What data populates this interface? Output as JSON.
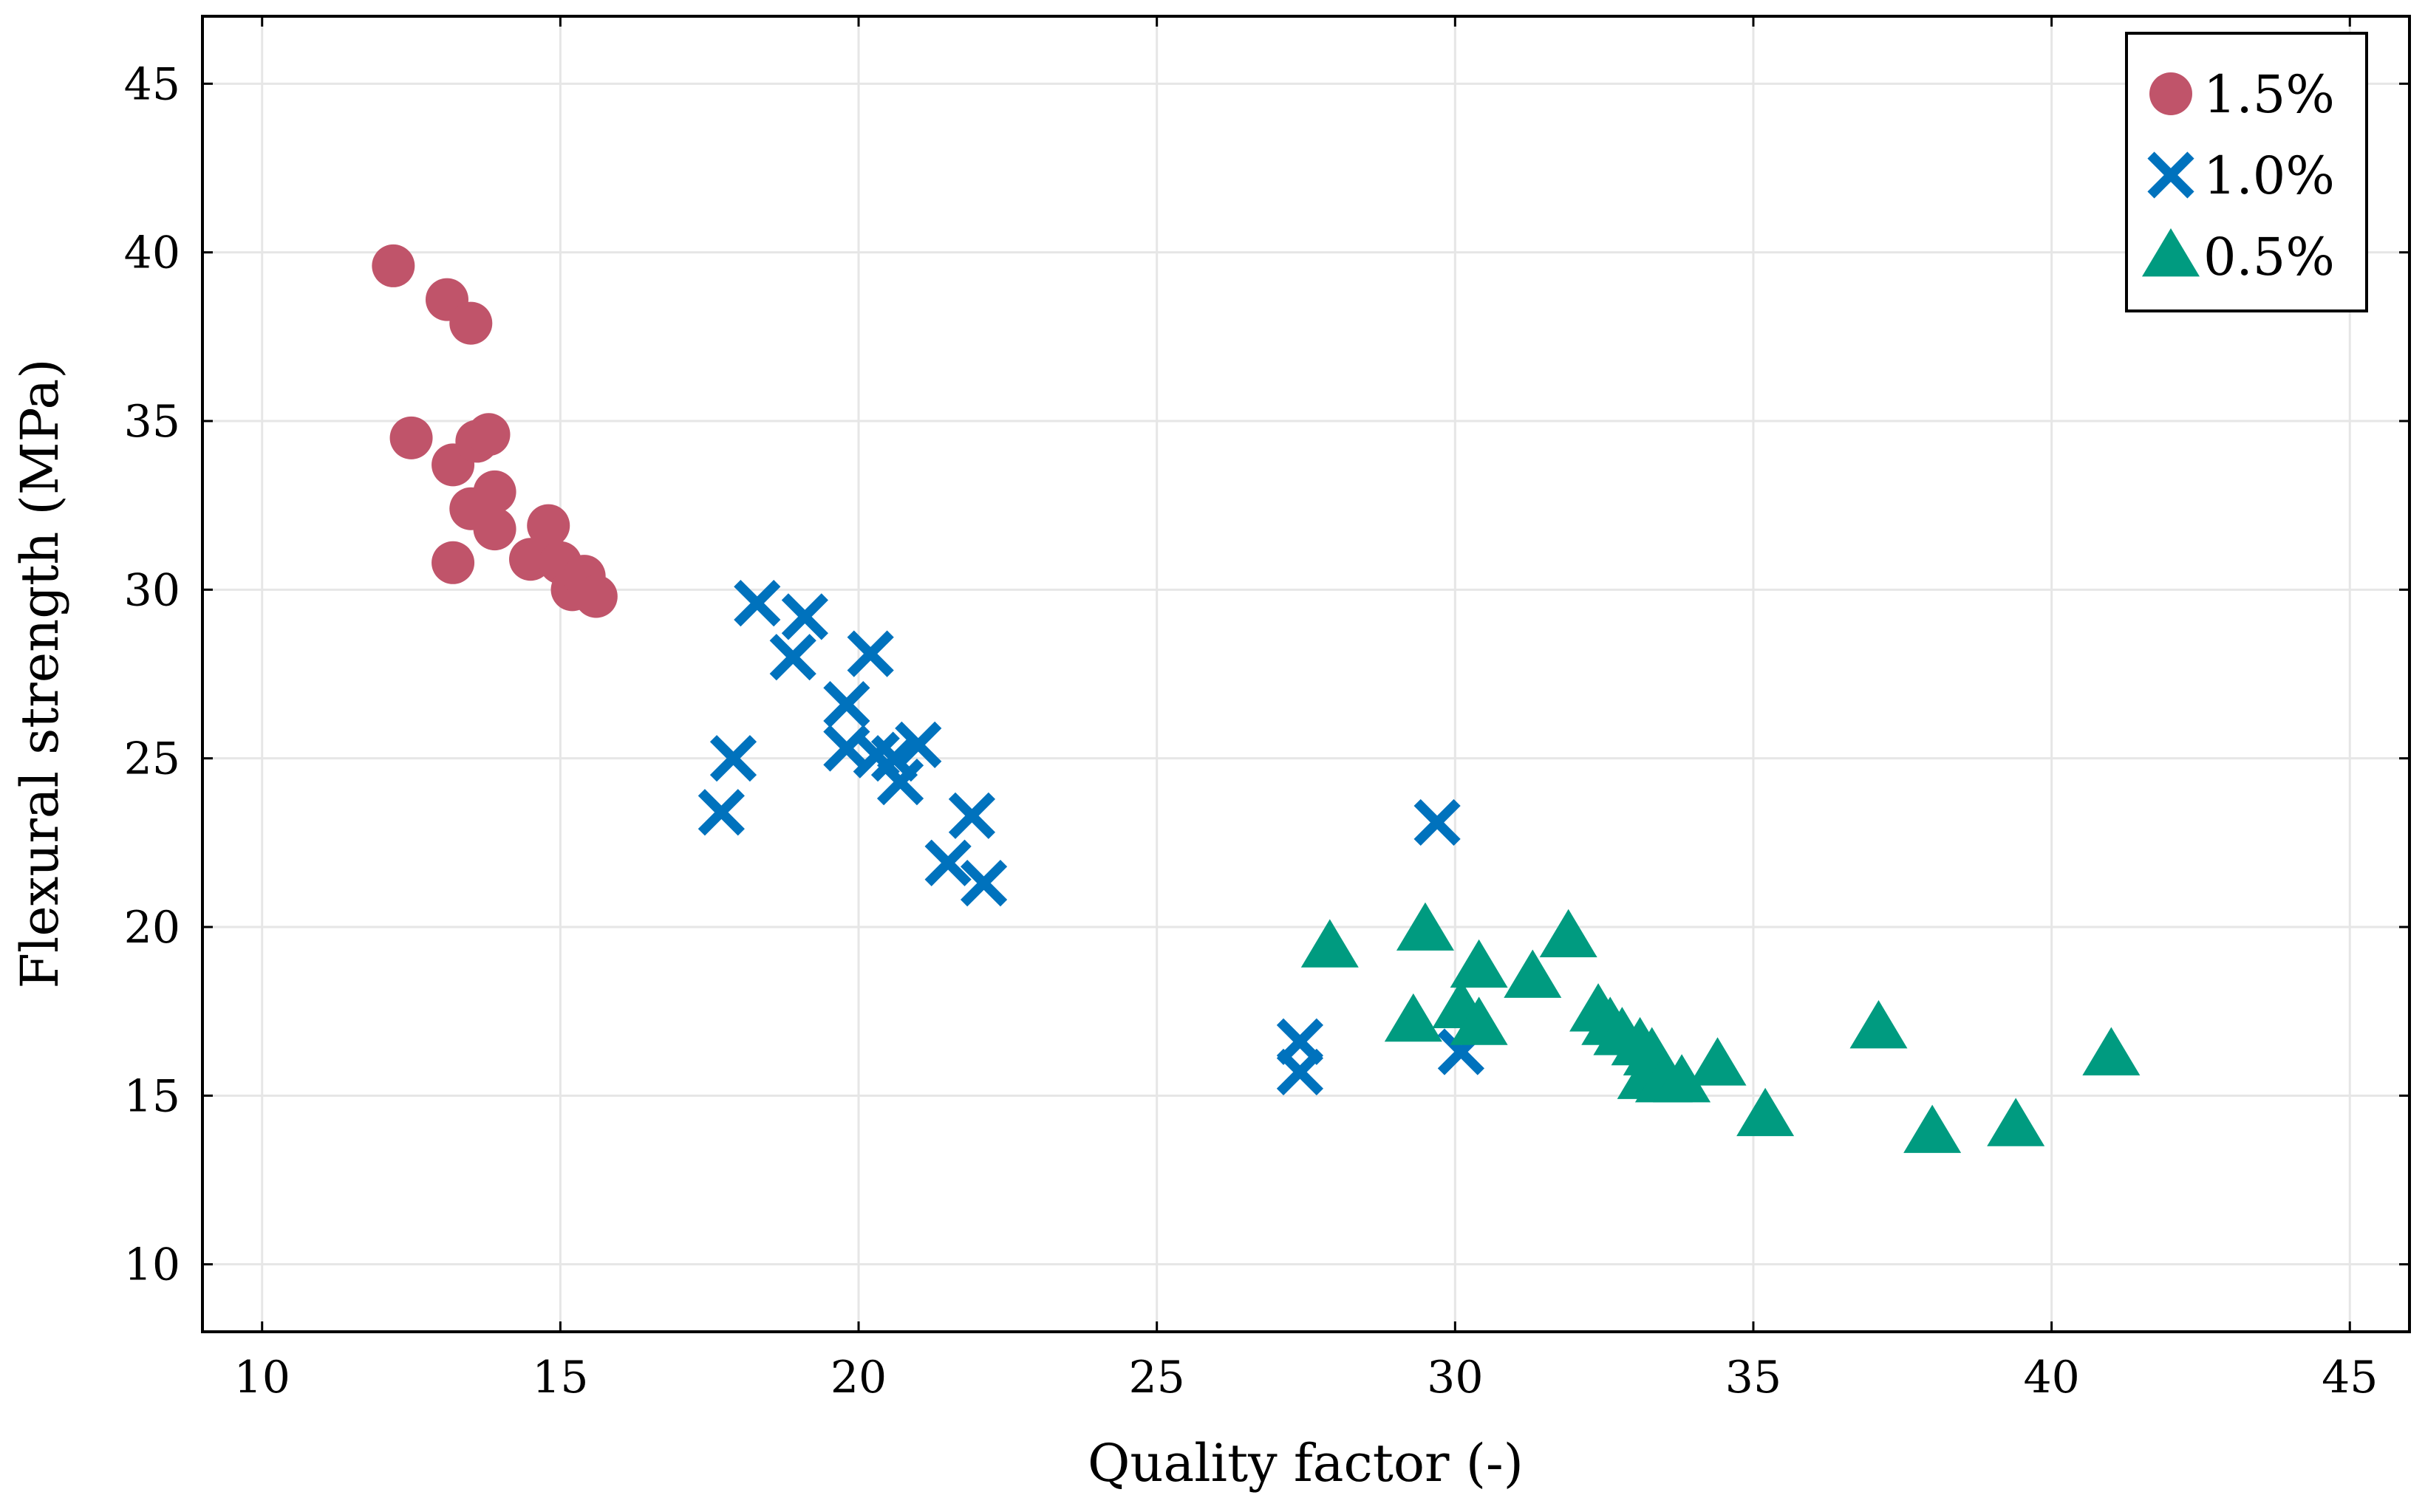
{
  "chart_data": {
    "type": "scatter",
    "title": "",
    "xlabel": "Quality factor (-)",
    "ylabel": "Flexural strength (MPa)",
    "xlim": [
      9,
      46
    ],
    "ylim": [
      8,
      47
    ],
    "xticks": [
      10,
      15,
      20,
      25,
      30,
      35,
      40,
      45
    ],
    "yticks": [
      10,
      15,
      20,
      25,
      30,
      35,
      40,
      45
    ],
    "grid": true,
    "legend_position": "top-right",
    "series": [
      {
        "name": "1.5%",
        "marker": "circle",
        "color": "#c0546a",
        "points": [
          [
            12.2,
            39.6
          ],
          [
            13.1,
            38.6
          ],
          [
            13.5,
            37.9
          ],
          [
            12.5,
            34.5
          ],
          [
            13.2,
            33.7
          ],
          [
            13.6,
            34.4
          ],
          [
            13.8,
            34.6
          ],
          [
            13.5,
            32.4
          ],
          [
            13.9,
            32.9
          ],
          [
            13.9,
            31.8
          ],
          [
            13.2,
            30.8
          ],
          [
            14.5,
            30.9
          ],
          [
            14.8,
            31.9
          ],
          [
            15.0,
            30.8
          ],
          [
            15.2,
            30.0
          ],
          [
            15.4,
            30.4
          ],
          [
            15.6,
            29.8
          ]
        ]
      },
      {
        "name": "1.0%",
        "marker": "cross",
        "color": "#0072bd",
        "points": [
          [
            18.3,
            29.6
          ],
          [
            19.1,
            29.2
          ],
          [
            18.9,
            28.0
          ],
          [
            20.2,
            28.1
          ],
          [
            19.8,
            26.6
          ],
          [
            19.8,
            25.3
          ],
          [
            20.3,
            25.1
          ],
          [
            20.6,
            25.0
          ],
          [
            21.0,
            25.4
          ],
          [
            20.7,
            24.3
          ],
          [
            17.9,
            25.0
          ],
          [
            17.7,
            23.4
          ],
          [
            21.9,
            23.3
          ],
          [
            21.5,
            21.9
          ],
          [
            22.1,
            21.3
          ],
          [
            29.7,
            23.1
          ],
          [
            27.4,
            16.6
          ],
          [
            27.4,
            15.7
          ],
          [
            30.1,
            16.3
          ]
        ]
      },
      {
        "name": "0.5%",
        "marker": "triangle",
        "color": "#009b80",
        "points": [
          [
            27.9,
            19.4
          ],
          [
            29.5,
            19.9
          ],
          [
            30.4,
            18.8
          ],
          [
            29.3,
            17.2
          ],
          [
            30.1,
            17.6
          ],
          [
            30.4,
            17.1
          ],
          [
            31.3,
            18.5
          ],
          [
            31.9,
            19.7
          ],
          [
            32.4,
            17.5
          ],
          [
            32.6,
            17.1
          ],
          [
            32.8,
            16.8
          ],
          [
            33.1,
            16.5
          ],
          [
            33.3,
            16.2
          ],
          [
            33.2,
            15.5
          ],
          [
            33.5,
            15.4
          ],
          [
            33.8,
            15.4
          ],
          [
            34.4,
            15.9
          ],
          [
            35.2,
            14.4
          ],
          [
            37.1,
            17.0
          ],
          [
            38.0,
            13.9
          ],
          [
            39.4,
            14.1
          ],
          [
            41.0,
            16.2
          ]
        ]
      }
    ]
  }
}
